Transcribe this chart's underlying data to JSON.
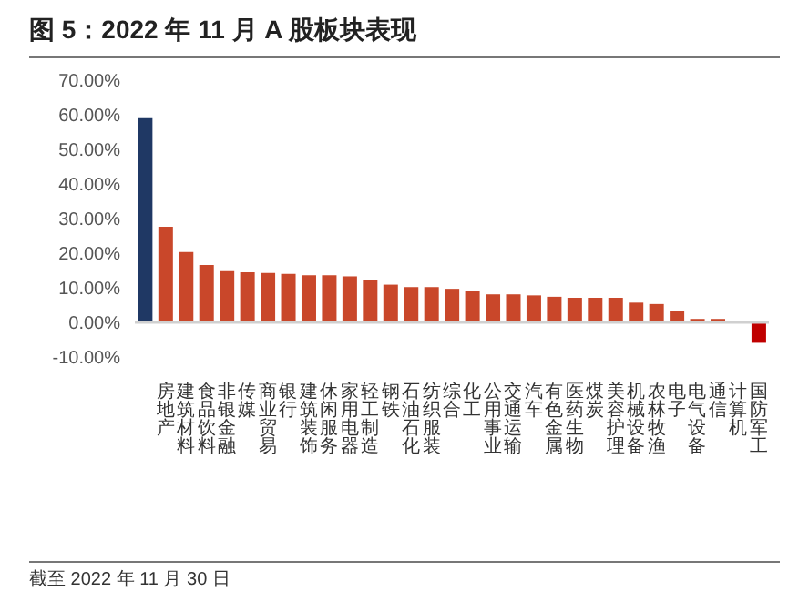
{
  "chart_data": {
    "type": "bar",
    "title": "图 5：2022 年 11 月 A 股板块表现",
    "categories": [
      null,
      "房地产",
      "建筑材料",
      "食品饮料",
      "非银金融",
      "传媒",
      "商业贸易",
      "银行",
      "建筑装饰",
      "休闲服务",
      "家用电器",
      "轻工制造",
      "钢铁",
      "石油石化",
      "纺织服装",
      "综合",
      "化工",
      "公用事业",
      "交通运输",
      "汽车",
      "有色金属",
      "医药生物",
      "煤炭",
      "美容护理",
      "机械设备",
      "农林牧渔",
      "电子",
      "电气设备",
      "通信",
      "计算机",
      "国防军工"
    ],
    "values": [
      59,
      27.6,
      20.3,
      16.6,
      14.8,
      14.5,
      14.3,
      14,
      13.6,
      13.6,
      13.3,
      12.2,
      10.9,
      10.2,
      10.2,
      9.7,
      9.1,
      8.1,
      8.1,
      7.8,
      7.4,
      7.1,
      7.1,
      7.1,
      5.7,
      5.3,
      3.3,
      1,
      1,
      0,
      -5.9
    ],
    "colors": [
      "#1f3864",
      "#c9472a",
      "#c9472a",
      "#c9472a",
      "#c9472a",
      "#c9472a",
      "#c9472a",
      "#c9472a",
      "#c9472a",
      "#c9472a",
      "#c9472a",
      "#c9472a",
      "#c9472a",
      "#c9472a",
      "#c9472a",
      "#c9472a",
      "#c9472a",
      "#c9472a",
      "#c9472a",
      "#c9472a",
      "#c9472a",
      "#c9472a",
      "#c9472a",
      "#c9472a",
      "#c9472a",
      "#c9472a",
      "#c9472a",
      "#c9472a",
      "#c9472a",
      "#c9472a",
      "#c00000"
    ],
    "ylim": [
      -10,
      70
    ],
    "yticks": [
      {
        "value": -10,
        "label": "-10.00%"
      },
      {
        "value": 0,
        "label": "0.00%"
      },
      {
        "value": 10,
        "label": "10.00%"
      },
      {
        "value": 20,
        "label": "20.00%"
      },
      {
        "value": 30,
        "label": "30.00%"
      },
      {
        "value": 40,
        "label": "40.00%"
      },
      {
        "value": 50,
        "label": "50.00%"
      },
      {
        "value": 60,
        "label": "60.00%"
      },
      {
        "value": 70,
        "label": "70.00%"
      }
    ],
    "annotations": [
      "截至 2022 年 11 月 30 日"
    ]
  }
}
